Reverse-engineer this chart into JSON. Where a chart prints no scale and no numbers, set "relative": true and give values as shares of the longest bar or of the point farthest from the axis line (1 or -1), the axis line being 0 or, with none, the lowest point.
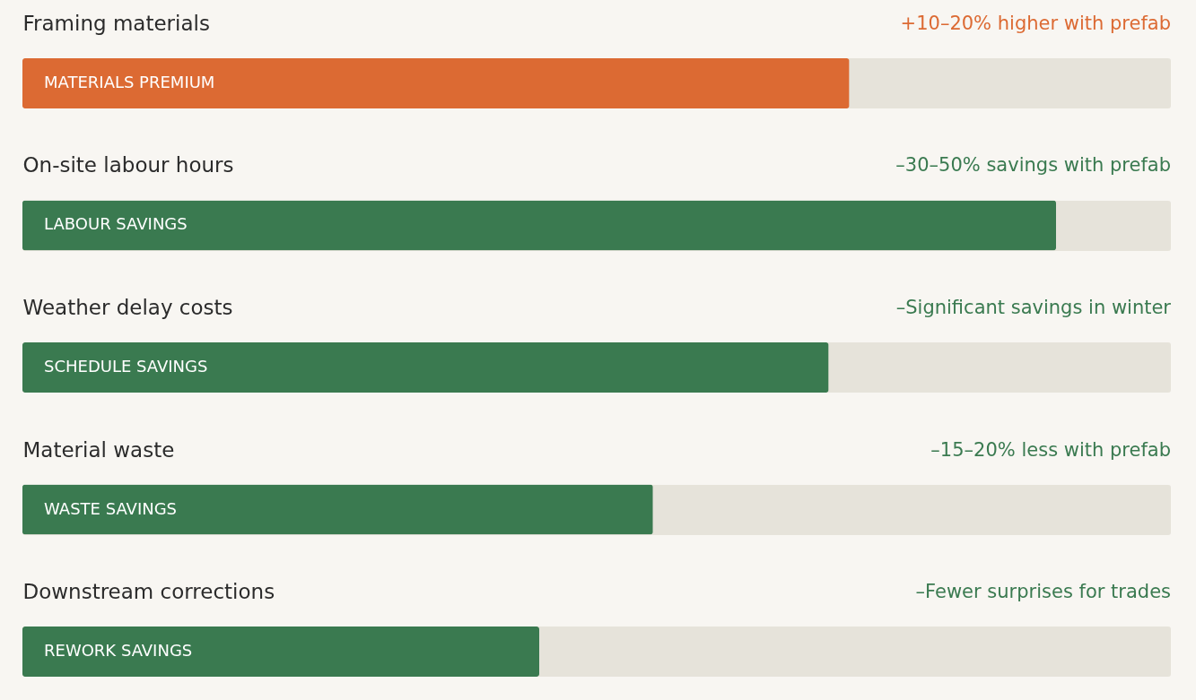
{
  "chart_data": {
    "type": "bar",
    "orientation": "horizontal",
    "relative": true,
    "categories": [
      "Framing materials",
      "On-site labour hours",
      "Weather delay costs",
      "Material waste",
      "Downstream corrections"
    ],
    "values": [
      0.8,
      1,
      0.78,
      0.61,
      0.5
    ],
    "colors": [
      "#dc6a33",
      "#3a7a50",
      "#3a7a50",
      "#3a7a50",
      "#3a7a50"
    ],
    "annotations": [
      "+10–20% higher with prefab",
      "MATERIALS PREMIUM",
      "–30–50% savings with prefab",
      "LABOUR SAVINGS",
      "–Significant savings in winter",
      "SCHEDULE SAVINGS",
      "–15–20% less with prefab",
      "WASTE SAVINGS",
      "–Fewer surprises for trades",
      "REWORK SAVINGS"
    ]
  }
}
